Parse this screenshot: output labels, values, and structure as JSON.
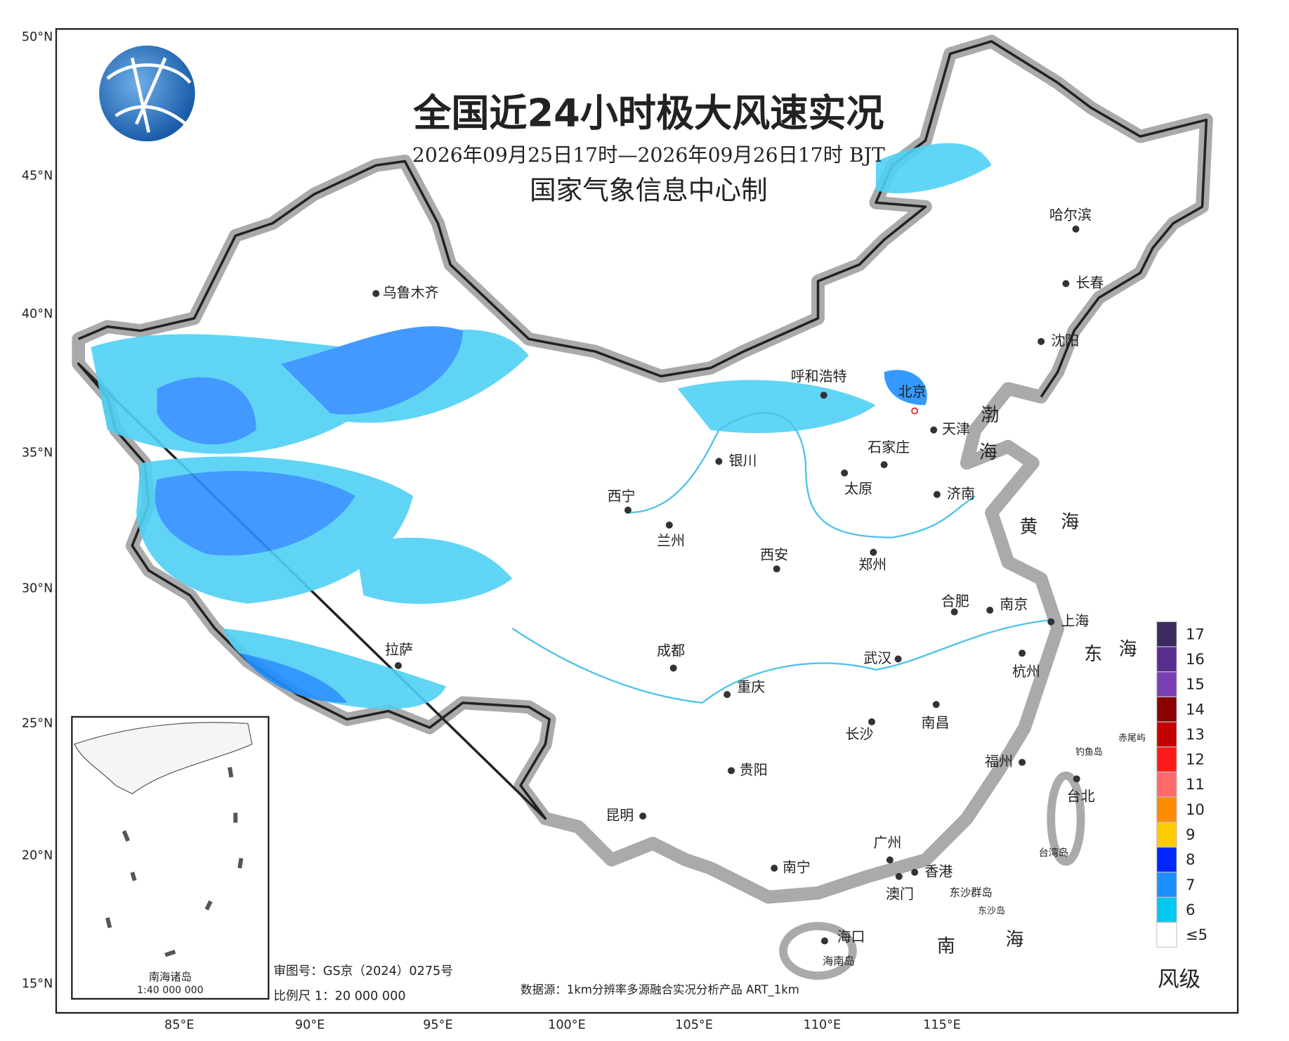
{
  "header": {
    "title": "全国近24小时极大风速实况",
    "subtitle": "2026年09月25日17时—2026年09月26日17时 BJT",
    "producer": "国家气象信息中心制"
  },
  "axes": {
    "lat_labels": [
      "50°N",
      "45°N",
      "40°N",
      "35°N",
      "30°N",
      "25°N",
      "20°N",
      "15°N"
    ],
    "lon_labels": [
      "85°E",
      "90°E",
      "95°E",
      "100°E",
      "105°E",
      "110°E",
      "115°E"
    ]
  },
  "cities": [
    "乌鲁木齐",
    "呼和浩特",
    "北京",
    "天津",
    "石家庄",
    "银川",
    "太原",
    "济南",
    "西宁",
    "兰州",
    "西安",
    "郑州",
    "合肥",
    "南京",
    "上海",
    "拉萨",
    "成都",
    "武汉",
    "杭州",
    "重庆",
    "长沙",
    "南昌",
    "福州",
    "贵阳",
    "台北",
    "昆明",
    "广州",
    "南宁",
    "香港",
    "澳门",
    "海口",
    "哈尔滨",
    "长春",
    "沈阳"
  ],
  "places": [
    "渤",
    "海",
    "黄",
    "海",
    "东",
    "海",
    "南",
    "海",
    "钓鱼岛",
    "赤尾屿",
    "台湾岛",
    "东沙群岛",
    "东沙岛",
    "海南岛"
  ],
  "legend": {
    "title": "风级",
    "items": [
      {
        "label": "17",
        "color": "#3b2a5e"
      },
      {
        "label": "16",
        "color": "#5a2d91"
      },
      {
        "label": "15",
        "color": "#7b3fb5"
      },
      {
        "label": "14",
        "color": "#8b0000"
      },
      {
        "label": "13",
        "color": "#c40000"
      },
      {
        "label": "12",
        "color": "#ff1a1a"
      },
      {
        "label": "11",
        "color": "#ff6b6b"
      },
      {
        "label": "10",
        "color": "#ff8c00"
      },
      {
        "label": "9",
        "color": "#ffcc00"
      },
      {
        "label": "8",
        "color": "#0026ff"
      },
      {
        "label": "7",
        "color": "#1e8fff"
      },
      {
        "label": "6",
        "color": "#00c8f0"
      },
      {
        "label": "≤5",
        "color": "#ffffff"
      }
    ]
  },
  "inset": {
    "title": "南海诸岛",
    "scale": "1:40 000 000"
  },
  "footer": {
    "review_number": "审图号：GS京（2024）0275号",
    "scale": "比例尺 1：20 000 000",
    "source": "数据源：1km分辨率多源融合实况分析产品 ART_1km"
  }
}
